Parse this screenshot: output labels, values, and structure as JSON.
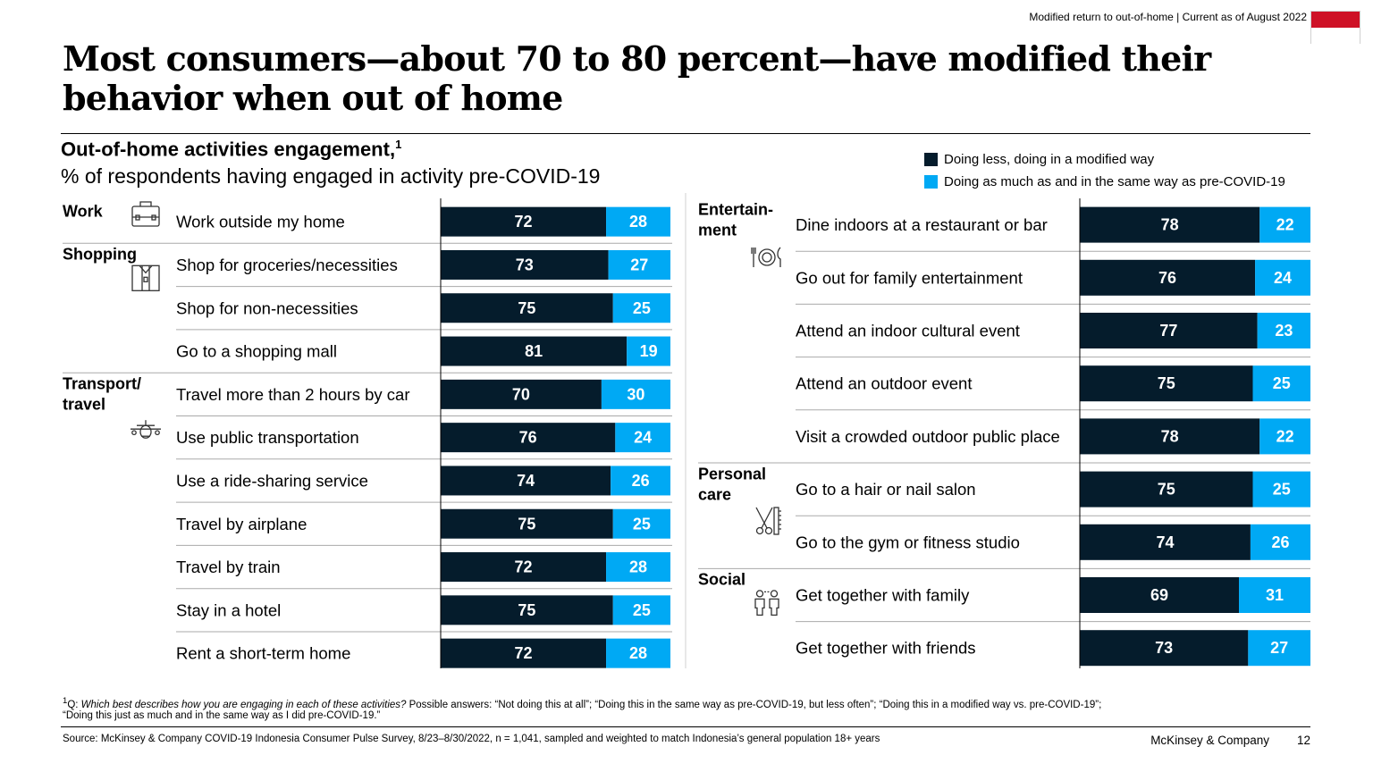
{
  "header": {
    "tag": "Modified return to out-of-home | Current as of August 2022"
  },
  "title": "Most consumers—about 70 to 80 percent—have modified their behavior when out of home",
  "colors": {
    "dark": "#051C2C",
    "light": "#00A9F4",
    "flag_red": "#CE1126",
    "flag_white": "#FFFFFF"
  },
  "chart_data": {
    "type": "bar",
    "stacked": true,
    "orientation": "horizontal",
    "title": "Out-of-home activities engagement,",
    "title_footnote_mark": "1",
    "subtitle": "% of respondents having engaged in activity pre-COVID-19",
    "series_names": [
      "Doing less, doing in a modified way",
      "Doing as much as and in the same way as pre-COVID-19"
    ],
    "xlim": [
      0,
      100
    ],
    "panels": [
      {
        "groups": [
          {
            "name": "Work",
            "icon": "briefcase-icon",
            "items": [
              {
                "label": "Work outside my home",
                "values": [
                  72,
                  28
                ]
              }
            ]
          },
          {
            "name": "Shopping",
            "icon": "shopping-bag-icon",
            "items": [
              {
                "label": "Shop for groceries/necessities",
                "values": [
                  73,
                  27
                ]
              },
              {
                "label": "Shop for non-necessities",
                "values": [
                  75,
                  25
                ]
              },
              {
                "label": "Go to a shopping mall",
                "values": [
                  81,
                  19
                ]
              }
            ]
          },
          {
            "name": "Transport/ travel",
            "icon": "airplane-icon",
            "items": [
              {
                "label": "Travel more than 2 hours by car",
                "values": [
                  70,
                  30
                ]
              },
              {
                "label": "Use public transportation",
                "values": [
                  76,
                  24
                ]
              },
              {
                "label": "Use a ride-sharing service",
                "values": [
                  74,
                  26
                ]
              },
              {
                "label": "Travel by airplane",
                "values": [
                  75,
                  25
                ]
              },
              {
                "label": "Travel by train",
                "values": [
                  72,
                  28
                ]
              },
              {
                "label": "Stay in a hotel",
                "values": [
                  75,
                  25
                ]
              },
              {
                "label": "Rent a short-term home",
                "values": [
                  72,
                  28
                ]
              }
            ]
          }
        ]
      },
      {
        "groups": [
          {
            "name": "Entertain- ment",
            "icon": "dining-icon",
            "items": [
              {
                "label": "Dine indoors at a restaurant or bar",
                "values": [
                  78,
                  22
                ]
              },
              {
                "label": "Go out for family entertainment",
                "values": [
                  76,
                  24
                ]
              },
              {
                "label": "Attend an indoor cultural event",
                "values": [
                  77,
                  23
                ]
              },
              {
                "label": "Attend an outdoor event",
                "values": [
                  75,
                  25
                ]
              },
              {
                "label": "Visit a crowded outdoor public place",
                "values": [
                  78,
                  22
                ]
              }
            ]
          },
          {
            "name": "Personal care",
            "icon": "scissors-comb-icon",
            "items": [
              {
                "label": "Go to a hair or nail salon",
                "values": [
                  75,
                  25
                ]
              },
              {
                "label": "Go to the gym or fitness studio",
                "values": [
                  74,
                  26
                ]
              }
            ]
          },
          {
            "name": "Social",
            "icon": "people-icon",
            "items": [
              {
                "label": "Get together with family",
                "values": [
                  69,
                  31
                ]
              },
              {
                "label": "Get together with friends",
                "values": [
                  73,
                  27
                ]
              }
            ]
          }
        ]
      }
    ]
  },
  "footnote": {
    "mark": "1",
    "q_prefix": "Q: ",
    "question": "Which best describes how you are engaging in each of these activities?",
    "answers_line1": " Possible answers: “Not doing this at all”; “Doing this in the same way as pre-COVID-19, but less often”; “Doing this in a modified way vs. pre-COVID-19”;",
    "answers_line2": "“Doing this just as much and in the same way as I did pre-COVID-19.”"
  },
  "source": "Source: McKinsey & Company COVID-19 Indonesia Consumer Pulse Survey, 8/23–8/30/2022, n = 1,041, sampled and weighted to match Indonesia’s general population 18+ years",
  "brand": "McKinsey & Company",
  "page_number": "12"
}
